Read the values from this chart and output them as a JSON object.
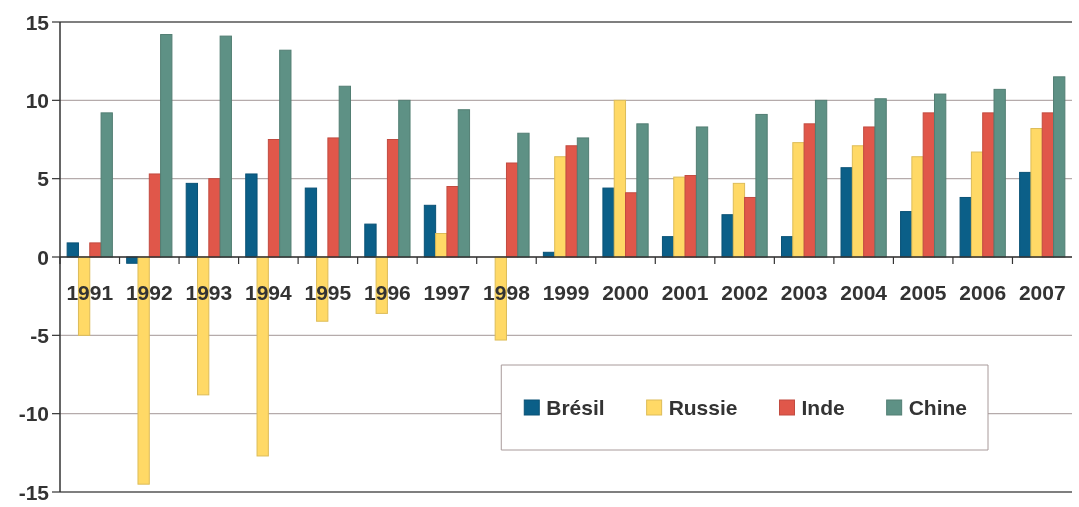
{
  "chart_data": {
    "type": "bar",
    "categories": [
      "1991",
      "1992",
      "1993",
      "1994",
      "1995",
      "1996",
      "1997",
      "1998",
      "1999",
      "2000",
      "2001",
      "2002",
      "2003",
      "2004",
      "2005",
      "2006",
      "2007"
    ],
    "series": [
      {
        "name": "Brésil",
        "color": "#0b5f88",
        "values": [
          0.9,
          -0.4,
          4.7,
          5.3,
          4.4,
          2.1,
          3.3,
          null,
          0.3,
          4.4,
          1.3,
          2.7,
          1.3,
          5.7,
          2.9,
          3.8,
          5.4
        ]
      },
      {
        "name": "Russie",
        "color": "#ffd966",
        "values": [
          -5.0,
          -14.5,
          -8.8,
          -12.7,
          -4.1,
          -3.6,
          1.5,
          -5.3,
          6.4,
          10.0,
          5.1,
          4.7,
          7.3,
          7.1,
          6.4,
          6.7,
          8.2
        ]
      },
      {
        "name": "Inde",
        "color": "#e0574a",
        "values": [
          0.9,
          5.3,
          5.0,
          7.5,
          7.6,
          7.5,
          4.5,
          6.0,
          7.1,
          4.1,
          5.2,
          3.8,
          8.5,
          8.3,
          9.2,
          9.2,
          9.2
        ]
      },
      {
        "name": "Chine",
        "color": "#5e9185",
        "values": [
          9.2,
          14.2,
          14.1,
          13.2,
          10.9,
          10.0,
          9.4,
          7.9,
          7.6,
          8.5,
          8.3,
          9.1,
          10.0,
          10.1,
          10.4,
          10.7,
          11.5
        ]
      }
    ],
    "ylim": [
      -15,
      15
    ],
    "yticks": [
      -15,
      -10,
      -5,
      0,
      5,
      10,
      15
    ],
    "grid": "y",
    "legend": "bottom right"
  }
}
